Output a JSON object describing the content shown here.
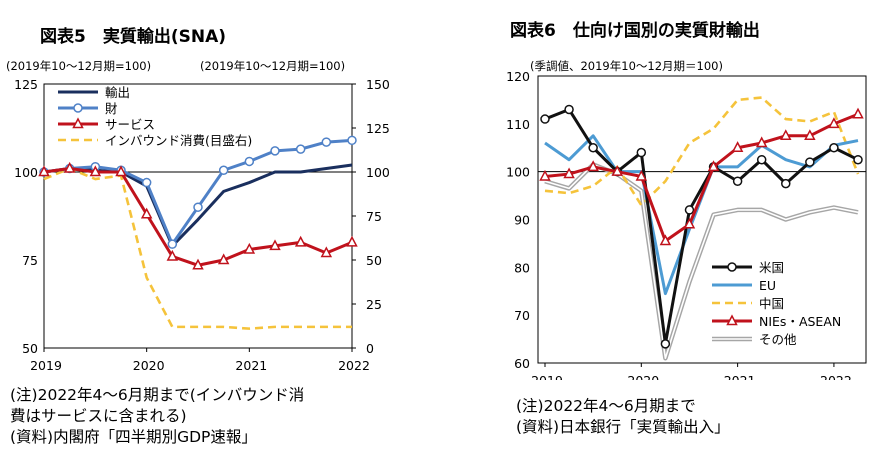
{
  "chart_data": [
    {
      "type": "line",
      "title": "図表5　実質輸出(SNA)",
      "subtitle_left": "(2019年10～12月期=100)",
      "subtitle_right": "(2019年10～12月期=100)",
      "left_axis": {
        "ylim": [
          50,
          125
        ],
        "ticks": [
          "125",
          "100",
          "75",
          "50"
        ]
      },
      "right_axis": {
        "ylim": [
          0,
          150
        ],
        "ticks": [
          "150",
          "125",
          "100",
          "75",
          "50",
          "25",
          "0"
        ]
      },
      "x_labels": [
        "2019",
        "2020",
        "2021",
        "2022"
      ],
      "series": [
        {
          "name": "輸出",
          "color": "#1a2f5e",
          "marker": "none",
          "dash": false,
          "axis": "left",
          "values": [
            100,
            101,
            100.5,
            100,
            96,
            79,
            86.5,
            94.5,
            97,
            100,
            100,
            101,
            102
          ]
        },
        {
          "name": "財",
          "color": "#4f81c7",
          "marker": "circle",
          "dash": false,
          "axis": "left",
          "values": [
            100,
            101,
            101.5,
            100.5,
            97,
            79.5,
            90,
            100.5,
            103,
            106,
            106.5,
            108.5,
            109
          ]
        },
        {
          "name": "サービス",
          "color": "#c0121c",
          "marker": "triangle",
          "dash": false,
          "axis": "left",
          "values": [
            100,
            101,
            100,
            100,
            88,
            76,
            73.5,
            75,
            78,
            79,
            80,
            77,
            80
          ]
        },
        {
          "name": "インバウンド消費(目盛右)",
          "color": "#f5c33b",
          "marker": "none",
          "dash": true,
          "axis": "right",
          "values": [
            96,
            102,
            96,
            98,
            40,
            12,
            12,
            12,
            11,
            12,
            12,
            12,
            12
          ]
        }
      ],
      "notes": [
        "(注)2022年4～6月期まで(インバウンド消",
        "費はサービスに含まれる)",
        "(資料)内閣府「四半期別GDP速報」"
      ]
    },
    {
      "type": "line",
      "title": "図表6　仕向け国別の実質財輸出",
      "subtitle": "(季調値、2019年10～12月期＝100)",
      "axis": {
        "ylim": [
          60,
          120
        ],
        "ticks": [
          "120",
          "110",
          "100",
          "90",
          "80",
          "70",
          "60"
        ]
      },
      "x_labels": [
        "2019",
        "2020",
        "2021",
        "2022"
      ],
      "series": [
        {
          "name": "米国",
          "color": "#111111",
          "marker": "circle",
          "dash": false,
          "values": [
            111,
            113,
            105,
            100,
            104,
            64,
            92,
            101,
            98,
            102.5,
            97.5,
            102,
            105,
            102.5
          ]
        },
        {
          "name": "EU",
          "color": "#4d9bd3",
          "marker": "none",
          "dash": false,
          "values": [
            106,
            102.5,
            107.5,
            100,
            100,
            74.5,
            88,
            101,
            101,
            105.5,
            102.5,
            101,
            105.5,
            106.5
          ]
        },
        {
          "name": "中国",
          "color": "#f5c33b",
          "marker": "none",
          "dash": true,
          "values": [
            96,
            95.5,
            97,
            101,
            93,
            98,
            106,
            109,
            115,
            115.5,
            111,
            110.5,
            112.5,
            99.5
          ]
        },
        {
          "name": "NIEs・ASEAN",
          "color": "#c0121c",
          "marker": "triangle",
          "dash": false,
          "values": [
            99,
            99.5,
            101,
            100,
            99,
            85.5,
            89,
            101,
            105,
            106,
            107.5,
            107.5,
            110,
            112
          ]
        },
        {
          "name": "その他",
          "color": "#a6a6a6",
          "marker": "none",
          "dash": false,
          "double": true,
          "values": [
            98,
            96.5,
            101.5,
            99.5,
            96,
            61,
            77,
            91,
            92,
            92,
            90,
            91.5,
            92.5,
            91.5
          ]
        }
      ],
      "notes": [
        "(注)2022年4～6月期まで",
        "(資料)日本銀行「実質輸出入」"
      ]
    }
  ]
}
